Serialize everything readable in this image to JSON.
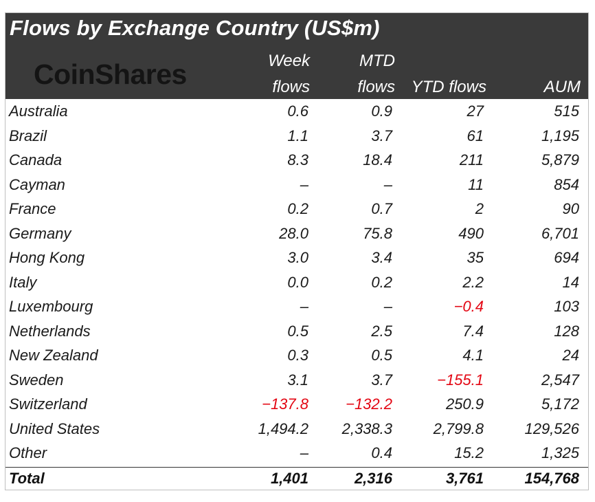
{
  "title": "Flows by Exchange Country (US$m)",
  "logo_text": "CoinShares",
  "headers": {
    "week_1": "Week",
    "week_2": "flows",
    "mtd_1": "MTD",
    "mtd_2": "flows",
    "ytd": "YTD flows",
    "aum": "AUM"
  },
  "colors": {
    "header_bg": "#3a3a3a",
    "negative": "#e30613",
    "text": "#1a1a1a"
  },
  "chart_data": {
    "type": "table",
    "columns": [
      "",
      "Week flows",
      "MTD flows",
      "YTD flows",
      "AUM"
    ],
    "rows": [
      {
        "country": "Australia",
        "week": "0.6",
        "mtd": "0.9",
        "ytd": "27",
        "aum": "515"
      },
      {
        "country": "Brazil",
        "week": "1.1",
        "mtd": "3.7",
        "ytd": "61",
        "aum": "1,195"
      },
      {
        "country": "Canada",
        "week": "8.3",
        "mtd": "18.4",
        "ytd": "211",
        "aum": "5,879"
      },
      {
        "country": "Cayman",
        "week": "-",
        "mtd": "-",
        "ytd": "11",
        "aum": "854"
      },
      {
        "country": "France",
        "week": "0.2",
        "mtd": "0.7",
        "ytd": "2",
        "aum": "90"
      },
      {
        "country": "Germany",
        "week": "28.0",
        "mtd": "75.8",
        "ytd": "490",
        "aum": "6,701"
      },
      {
        "country": "Hong Kong",
        "week": "3.0",
        "mtd": "3.4",
        "ytd": "35",
        "aum": "694"
      },
      {
        "country": "Italy",
        "week": "0.0",
        "mtd": "0.2",
        "ytd": "2.2",
        "aum": "14"
      },
      {
        "country": "Luxembourg",
        "week": "-",
        "mtd": "-",
        "ytd": "-0.4",
        "aum": "103"
      },
      {
        "country": "Netherlands",
        "week": "0.5",
        "mtd": "2.5",
        "ytd": "7.4",
        "aum": "128"
      },
      {
        "country": "New Zealand",
        "week": "0.3",
        "mtd": "0.5",
        "ytd": "4.1",
        "aum": "24"
      },
      {
        "country": "Sweden",
        "week": "3.1",
        "mtd": "3.7",
        "ytd": "-155.1",
        "aum": "2,547"
      },
      {
        "country": "Switzerland",
        "week": "-137.8",
        "mtd": "-132.2",
        "ytd": "250.9",
        "aum": "5,172"
      },
      {
        "country": "United States",
        "week": "1,494.2",
        "mtd": "2,338.3",
        "ytd": "2,799.8",
        "aum": "129,526"
      },
      {
        "country": "Other",
        "week": "-",
        "mtd": "0.4",
        "ytd": "15.2",
        "aum": "1,325"
      }
    ],
    "total": {
      "label": "Total",
      "week": "1,401",
      "mtd": "2,316",
      "ytd": "3,761",
      "aum": "154,768"
    }
  }
}
